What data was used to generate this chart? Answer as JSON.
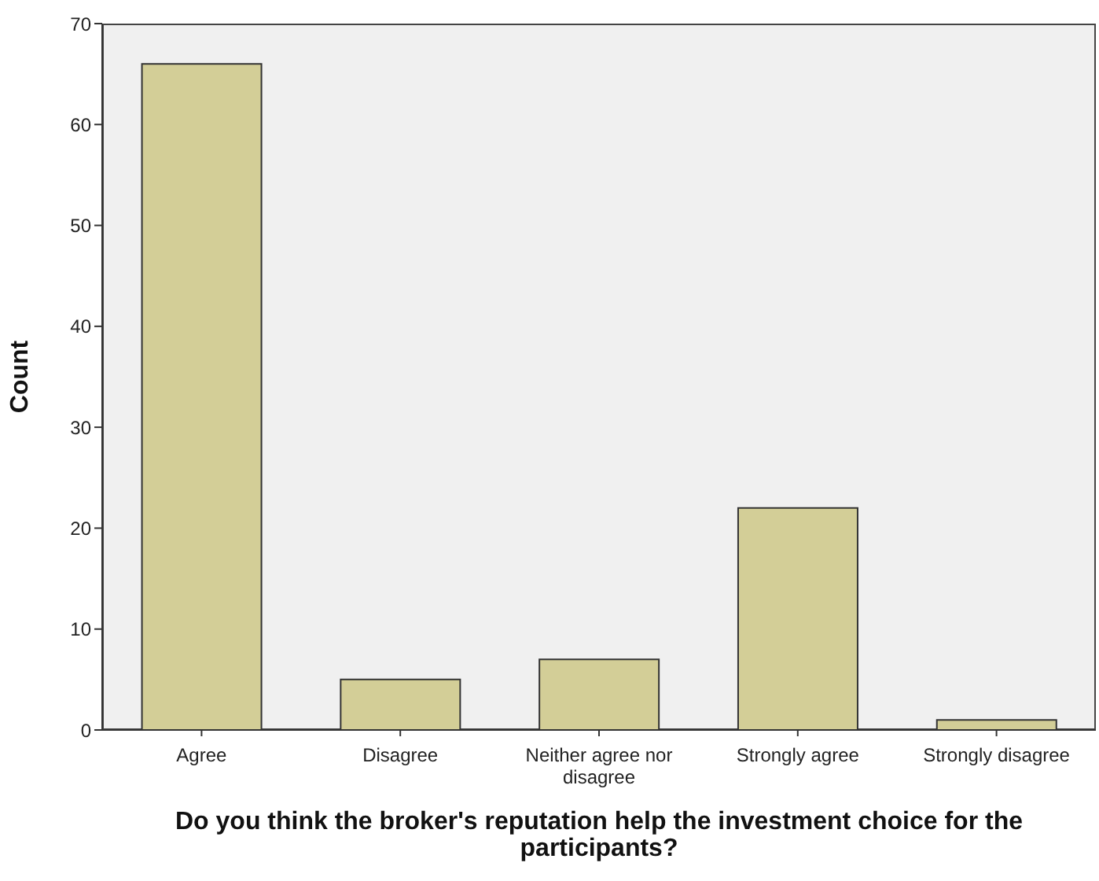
{
  "chart_data": {
    "type": "bar",
    "xlabel": "Do you think the broker's reputation help the investment choice for the participants?",
    "ylabel": "Count",
    "categories": [
      "Agree",
      "Disagree",
      "Neither agree nor disagree",
      "Strongly agree",
      "Strongly disagree"
    ],
    "values": [
      66,
      5,
      7,
      22,
      1
    ],
    "color": "#d3ce97",
    "ylim": [
      0,
      70
    ],
    "yticks": [
      0,
      10,
      20,
      30,
      40,
      50,
      60,
      70
    ],
    "grid": false,
    "legend": false
  }
}
